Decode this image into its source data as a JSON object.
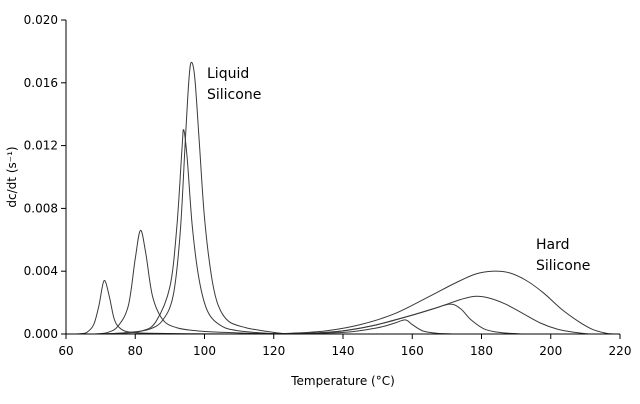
{
  "chart_data": {
    "type": "line",
    "title": "",
    "xlabel": "Temperature (°C)",
    "ylabel": "dc/dt (s⁻¹)",
    "xlim": [
      60,
      220
    ],
    "ylim": [
      0,
      0.02
    ],
    "x_ticks": [
      60,
      80,
      100,
      120,
      140,
      160,
      180,
      200,
      220
    ],
    "x_tick_labels": [
      "60",
      "80",
      "100",
      "120",
      "140",
      "160",
      "180",
      "200",
      "220"
    ],
    "y_ticks": [
      0,
      0.004,
      0.008,
      0.012,
      0.016,
      0.02
    ],
    "y_tick_labels": [
      "0.000",
      "0.004",
      "0.008",
      "0.012",
      "0.016",
      "0.020"
    ],
    "grid": false,
    "legend": "none",
    "line_color": "#3a3a3a",
    "annotations": [
      {
        "lines": [
          "Liquid",
          "Silicone"
        ],
        "x": 207,
        "y": 0.017
      },
      {
        "lines": [
          "Hard",
          "Silicone"
        ],
        "x": 536,
        "y": 0.0047
      }
    ],
    "series": [
      {
        "points": [
          [
            62,
            0
          ],
          [
            64,
            2e-05
          ],
          [
            66,
            0.0001
          ],
          [
            68,
            0.0006
          ],
          [
            69.5,
            0.0018
          ],
          [
            71,
            0.0034
          ],
          [
            72.5,
            0.0024
          ],
          [
            74,
            0.0009
          ],
          [
            76,
            0.0003
          ],
          [
            79,
            0.0001
          ],
          [
            84,
            5e-05
          ],
          [
            95,
            2e-05
          ],
          [
            110,
            0
          ]
        ]
      },
      {
        "points": [
          [
            68,
            0
          ],
          [
            72,
            0.0001
          ],
          [
            75,
            0.0005
          ],
          [
            78,
            0.0018
          ],
          [
            80,
            0.0048
          ],
          [
            81.5,
            0.0066
          ],
          [
            83,
            0.0052
          ],
          [
            85,
            0.0024
          ],
          [
            88,
            0.0009
          ],
          [
            92,
            0.0004
          ],
          [
            98,
            0.0002
          ],
          [
            106,
            0.0001
          ],
          [
            120,
            0
          ]
        ]
      },
      {
        "points": [
          [
            70,
            0
          ],
          [
            76,
            5e-05
          ],
          [
            82,
            0.0002
          ],
          [
            86,
            0.0008
          ],
          [
            90,
            0.003
          ],
          [
            92,
            0.0068
          ],
          [
            93.5,
            0.0118
          ],
          [
            94,
            0.013
          ],
          [
            95,
            0.0112
          ],
          [
            96.5,
            0.0068
          ],
          [
            98.5,
            0.0034
          ],
          [
            101,
            0.0014
          ],
          [
            105,
            0.0005
          ],
          [
            110,
            0.0002
          ],
          [
            118,
            5e-05
          ],
          [
            125,
            0
          ]
        ]
      },
      {
        "points": [
          [
            70,
            0
          ],
          [
            78,
            0.0001
          ],
          [
            84,
            0.0003
          ],
          [
            88,
            0.0009
          ],
          [
            91,
            0.0025
          ],
          [
            93,
            0.0065
          ],
          [
            94.5,
            0.0125
          ],
          [
            95.5,
            0.0162
          ],
          [
            96.2,
            0.0173
          ],
          [
            97.2,
            0.0163
          ],
          [
            98.5,
            0.0122
          ],
          [
            100,
            0.0074
          ],
          [
            102,
            0.0037
          ],
          [
            104,
            0.0018
          ],
          [
            107,
            0.0008
          ],
          [
            112,
            0.0004
          ],
          [
            117,
            0.0002
          ],
          [
            122,
            5e-05
          ],
          [
            126,
            0
          ]
        ]
      },
      {
        "points": [
          [
            115,
            0
          ],
          [
            130,
            5e-05
          ],
          [
            140,
            0.0002
          ],
          [
            148,
            0.0005
          ],
          [
            155,
            0.0009
          ],
          [
            160,
            0.0012
          ],
          [
            166,
            0.0016
          ],
          [
            171,
            0.0019
          ],
          [
            174,
            0.0016
          ],
          [
            177,
            0.0009
          ],
          [
            181,
            0.0003
          ],
          [
            186,
            8e-05
          ],
          [
            192,
            0
          ]
        ]
      },
      {
        "points": [
          [
            120,
            0
          ],
          [
            132,
            5e-05
          ],
          [
            140,
            0.0002
          ],
          [
            150,
            0.0006
          ],
          [
            160,
            0.0012
          ],
          [
            166,
            0.0016
          ],
          [
            170,
            0.0019
          ],
          [
            174,
            0.0022
          ],
          [
            178,
            0.0024
          ],
          [
            182,
            0.0023
          ],
          [
            187,
            0.0019
          ],
          [
            192,
            0.0013
          ],
          [
            197,
            0.0007
          ],
          [
            202,
            0.0003
          ],
          [
            207,
            0.0001
          ],
          [
            211,
            0
          ]
        ]
      },
      {
        "points": [
          [
            115,
            0
          ],
          [
            125,
            5e-05
          ],
          [
            135,
            0.0002
          ],
          [
            145,
            0.0006
          ],
          [
            155,
            0.0013
          ],
          [
            165,
            0.0024
          ],
          [
            172,
            0.0032
          ],
          [
            178,
            0.0038
          ],
          [
            183,
            0.004
          ],
          [
            188,
            0.0039
          ],
          [
            193,
            0.0034
          ],
          [
            198,
            0.0026
          ],
          [
            203,
            0.0016
          ],
          [
            208,
            0.0008
          ],
          [
            212,
            0.0003
          ],
          [
            216,
            5e-05
          ],
          [
            218,
            0
          ]
        ]
      },
      {
        "points": [
          [
            120,
            0
          ],
          [
            140,
            0.0001
          ],
          [
            150,
            0.0004
          ],
          [
            155,
            0.0007
          ],
          [
            158,
            0.0009
          ],
          [
            160,
            0.0006
          ],
          [
            163,
            0.0002
          ],
          [
            167,
            5e-05
          ],
          [
            172,
            0
          ]
        ]
      }
    ]
  }
}
